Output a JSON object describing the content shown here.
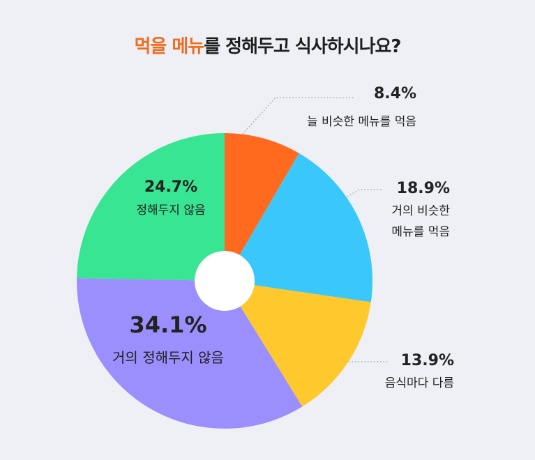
{
  "chart_data": {
    "type": "pie",
    "title": [
      {
        "text": "먹을 메뉴",
        "color": "#f26b21"
      },
      {
        "text": "를 정해두고 식사하시나요?",
        "color": "#1e1e1e"
      }
    ],
    "categories": [
      "늘 비슷한 메뉴를 먹음",
      "거의 비슷한 메뉴를 먹음",
      "음식마다 다름",
      "거의 정해두지 않음",
      "정해두지 않음"
    ],
    "values": [
      8.4,
      18.9,
      13.9,
      34.1,
      24.7
    ],
    "value_labels": [
      "8.4%",
      "18.9%",
      "13.9%",
      "34.1%",
      "24.7%"
    ],
    "colors": [
      "#ff6a1f",
      "#3ac8fb",
      "#ffc82c",
      "#9b8ffd",
      "#38e592"
    ]
  }
}
